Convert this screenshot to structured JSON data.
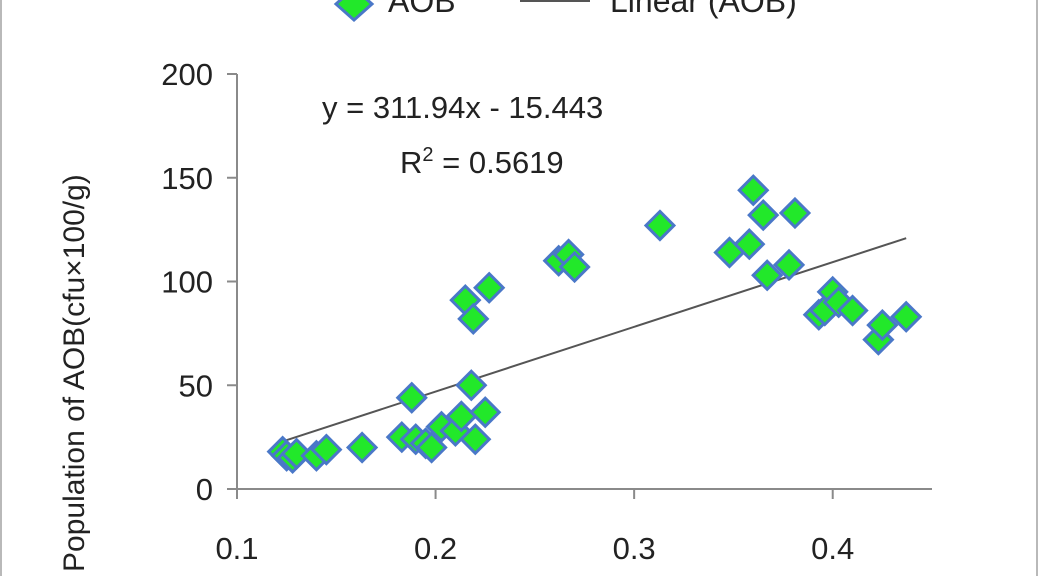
{
  "colors": {
    "marker_fill": "#22e82a",
    "marker_stroke": "#4a78c8",
    "trendline": "#555555",
    "axis": "#8a8a8a"
  },
  "chart_data": {
    "type": "scatter",
    "title": "",
    "xlabel": "",
    "ylabel": "Population of AOB(cfu×100/g)",
    "xlim": [
      0.1,
      0.45
    ],
    "ylim": [
      0,
      200
    ],
    "xticks": [
      "0.1",
      "0.2",
      "0.3",
      "0.4"
    ],
    "xtick_values": [
      0.1,
      0.2,
      0.3,
      0.4
    ],
    "yticks": [
      "0",
      "50",
      "100",
      "150",
      "200"
    ],
    "ytick_values": [
      0,
      50,
      100,
      150,
      200
    ],
    "grid": false,
    "legend": {
      "placement": "top",
      "entries": [
        {
          "label": "AOB",
          "marker": "diamond"
        },
        {
          "label": "Linear (AOB)",
          "marker": "line"
        }
      ]
    },
    "series": [
      {
        "name": "AOB",
        "marker": "diamond",
        "points": [
          [
            0.123,
            18
          ],
          [
            0.125,
            16
          ],
          [
            0.128,
            15
          ],
          [
            0.13,
            17
          ],
          [
            0.14,
            16
          ],
          [
            0.145,
            19
          ],
          [
            0.163,
            20
          ],
          [
            0.183,
            25
          ],
          [
            0.188,
            44
          ],
          [
            0.19,
            24
          ],
          [
            0.195,
            22
          ],
          [
            0.198,
            20
          ],
          [
            0.203,
            30
          ],
          [
            0.21,
            28
          ],
          [
            0.213,
            35
          ],
          [
            0.215,
            91
          ],
          [
            0.218,
            50
          ],
          [
            0.219,
            82
          ],
          [
            0.22,
            24
          ],
          [
            0.225,
            37
          ],
          [
            0.227,
            97
          ],
          [
            0.262,
            110
          ],
          [
            0.267,
            113
          ],
          [
            0.27,
            107
          ],
          [
            0.313,
            127
          ],
          [
            0.348,
            114
          ],
          [
            0.358,
            118
          ],
          [
            0.36,
            144
          ],
          [
            0.365,
            132
          ],
          [
            0.367,
            103
          ],
          [
            0.378,
            108
          ],
          [
            0.381,
            133
          ],
          [
            0.393,
            84
          ],
          [
            0.396,
            86
          ],
          [
            0.4,
            95
          ],
          [
            0.403,
            90
          ],
          [
            0.41,
            86
          ],
          [
            0.423,
            72
          ],
          [
            0.425,
            79
          ],
          [
            0.437,
            83
          ]
        ]
      }
    ],
    "trendline": {
      "name": "Linear (AOB)",
      "slope": 311.94,
      "intercept": -15.443,
      "x_range": [
        0.123,
        0.437
      ],
      "equation": "y = 311.94x - 15.443",
      "r2_prefix": "R",
      "r2_sup": "2",
      "r2_suffix": " = 0.5619"
    }
  }
}
